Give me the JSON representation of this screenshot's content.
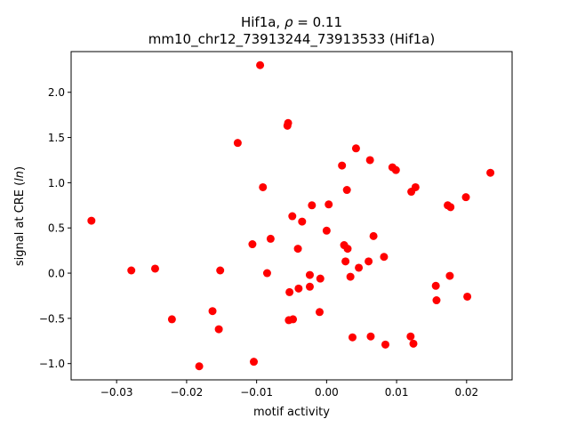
{
  "chart_data": {
    "type": "scatter",
    "title_prefix": "Hif1a, ",
    "title_rho_symbol": "ρ",
    "title_rho_value": " = 0.11",
    "subtitle": "mm10_chr12_73913244_73913533 (Hif1a)",
    "xlabel": "motif activity",
    "ylabel_prefix": "signal at CRE (",
    "ylabel_var": "ln",
    "ylabel_suffix": ")",
    "xlim": [
      -0.0365,
      0.0265
    ],
    "ylim": [
      -1.18,
      2.45
    ],
    "xticks": [
      {
        "value": -0.03,
        "label": "−0.03"
      },
      {
        "value": -0.02,
        "label": "−0.02"
      },
      {
        "value": -0.01,
        "label": "−0.01"
      },
      {
        "value": 0.0,
        "label": "0.00"
      },
      {
        "value": 0.01,
        "label": "0.01"
      },
      {
        "value": 0.02,
        "label": "0.02"
      }
    ],
    "yticks": [
      {
        "value": -1.0,
        "label": "−1.0"
      },
      {
        "value": -0.5,
        "label": "−0.5"
      },
      {
        "value": 0.0,
        "label": "0.0"
      },
      {
        "value": 0.5,
        "label": "0.5"
      },
      {
        "value": 1.0,
        "label": "1.0"
      },
      {
        "value": 1.5,
        "label": "1.5"
      },
      {
        "value": 2.0,
        "label": "2.0"
      }
    ],
    "marker_color": "#ff0000",
    "points": [
      {
        "x": -0.0336,
        "y": 0.58
      },
      {
        "x": -0.0279,
        "y": 0.03
      },
      {
        "x": -0.0245,
        "y": 0.05
      },
      {
        "x": -0.0221,
        "y": -0.51
      },
      {
        "x": -0.0182,
        "y": -1.03
      },
      {
        "x": -0.0163,
        "y": -0.42
      },
      {
        "x": -0.0154,
        "y": -0.62
      },
      {
        "x": -0.0152,
        "y": 0.03
      },
      {
        "x": -0.0127,
        "y": 1.44
      },
      {
        "x": -0.0106,
        "y": 0.32
      },
      {
        "x": -0.0104,
        "y": -0.98
      },
      {
        "x": -0.0095,
        "y": 2.3
      },
      {
        "x": -0.0091,
        "y": 0.95
      },
      {
        "x": -0.0085,
        "y": 0.0
      },
      {
        "x": -0.008,
        "y": 0.38
      },
      {
        "x": -0.0056,
        "y": 1.63
      },
      {
        "x": -0.0055,
        "y": 1.66
      },
      {
        "x": -0.0054,
        "y": -0.52
      },
      {
        "x": -0.0053,
        "y": -0.21
      },
      {
        "x": -0.0049,
        "y": 0.63
      },
      {
        "x": -0.0048,
        "y": -0.51
      },
      {
        "x": -0.0041,
        "y": 0.27
      },
      {
        "x": -0.004,
        "y": -0.17
      },
      {
        "x": -0.0035,
        "y": 0.57
      },
      {
        "x": -0.0024,
        "y": -0.02
      },
      {
        "x": -0.0024,
        "y": -0.15
      },
      {
        "x": -0.0021,
        "y": 0.75
      },
      {
        "x": -0.001,
        "y": -0.43
      },
      {
        "x": -0.0009,
        "y": -0.06
      },
      {
        "x": 0.0,
        "y": 0.47
      },
      {
        "x": 0.0003,
        "y": 0.76
      },
      {
        "x": 0.0022,
        "y": 1.19
      },
      {
        "x": 0.0025,
        "y": 0.31
      },
      {
        "x": 0.0027,
        "y": 0.13
      },
      {
        "x": 0.0029,
        "y": 0.92
      },
      {
        "x": 0.003,
        "y": 0.27
      },
      {
        "x": 0.0034,
        "y": -0.04
      },
      {
        "x": 0.0037,
        "y": -0.71
      },
      {
        "x": 0.0042,
        "y": 1.38
      },
      {
        "x": 0.0046,
        "y": 0.06
      },
      {
        "x": 0.006,
        "y": 0.13
      },
      {
        "x": 0.0062,
        "y": 1.25
      },
      {
        "x": 0.0063,
        "y": -0.7
      },
      {
        "x": 0.0067,
        "y": 0.41
      },
      {
        "x": 0.0082,
        "y": 0.18
      },
      {
        "x": 0.0084,
        "y": -0.79
      },
      {
        "x": 0.0094,
        "y": 1.17
      },
      {
        "x": 0.0099,
        "y": 1.14
      },
      {
        "x": 0.012,
        "y": -0.7
      },
      {
        "x": 0.0121,
        "y": 0.9
      },
      {
        "x": 0.0124,
        "y": -0.78
      },
      {
        "x": 0.0127,
        "y": 0.95
      },
      {
        "x": 0.0156,
        "y": -0.14
      },
      {
        "x": 0.0157,
        "y": -0.3
      },
      {
        "x": 0.0173,
        "y": 0.75
      },
      {
        "x": 0.0176,
        "y": -0.03
      },
      {
        "x": 0.0177,
        "y": 0.73
      },
      {
        "x": 0.0199,
        "y": 0.84
      },
      {
        "x": 0.0201,
        "y": -0.26
      },
      {
        "x": 0.0234,
        "y": 1.11
      }
    ]
  }
}
